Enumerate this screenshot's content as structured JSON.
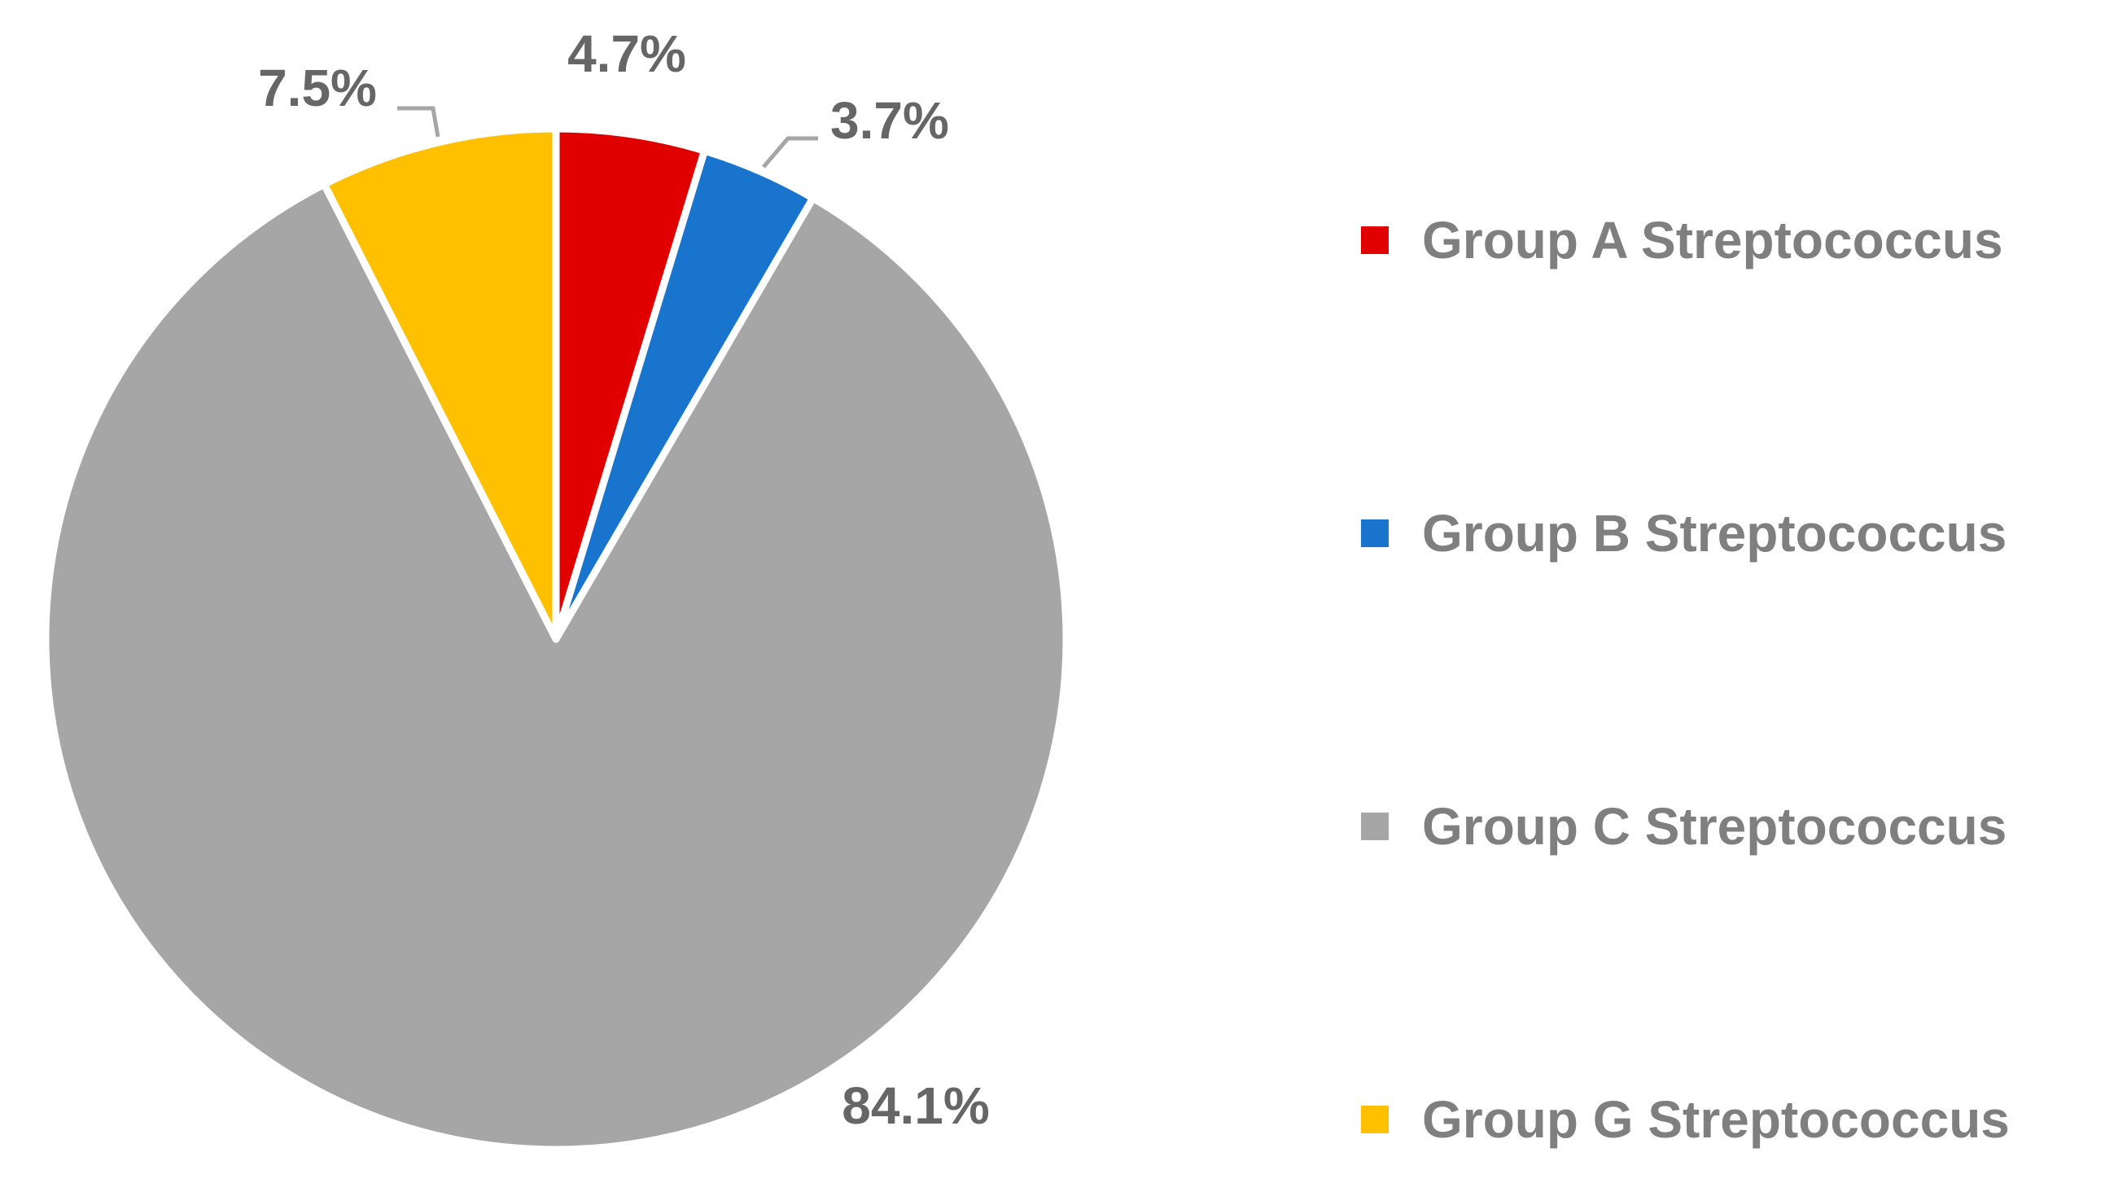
{
  "chart_data": {
    "type": "pie",
    "title": "",
    "start_angle_deg": 0,
    "direction": "clockwise",
    "slices": [
      {
        "label": "Group A Streptococcus",
        "value": 4.7,
        "display": "4.7%",
        "color": "#e00000"
      },
      {
        "label": "Group B Streptococcus",
        "value": 3.7,
        "display": "3.7%",
        "color": "#1874cd"
      },
      {
        "label": "Group C  Streptococcus",
        "value": 84.1,
        "display": "84.1%",
        "color": "#a6a6a6"
      },
      {
        "label": "Group G Streptococcus",
        "value": 7.5,
        "display": "7.5%",
        "color": "#ffc000"
      }
    ],
    "legend_position": "right",
    "slice_border_color": "#ffffff"
  }
}
